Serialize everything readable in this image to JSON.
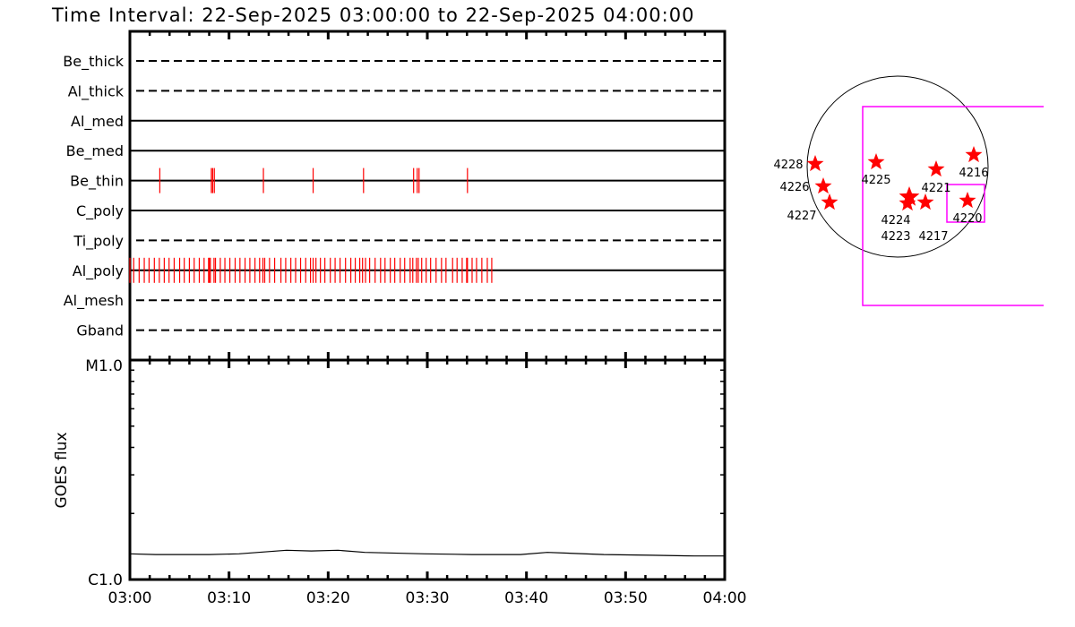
{
  "chart_data": [
    {
      "type": "timeline",
      "title": "Time Interval: 22-Sep-2025 03:00:00 to 22-Sep-2025 04:00:00",
      "xlim": [
        "03:00",
        "04:00"
      ],
      "xtick_labels": [
        "03:00",
        "03:10",
        "03:20",
        "03:30",
        "03:40",
        "03:50",
        "04:00"
      ],
      "exposure_color": "#ff0000",
      "rows": [
        {
          "name": "Be_thick",
          "line": "dashed",
          "exposures": []
        },
        {
          "name": "Al_thick",
          "line": "dashed",
          "exposures": []
        },
        {
          "name": "Al_med",
          "line": "solid",
          "exposures": []
        },
        {
          "name": "Be_med",
          "line": "solid",
          "exposures": []
        },
        {
          "name": "Be_thin",
          "line": "solid",
          "exposures": [
            "03:03:01",
            "03:08:13",
            "03:08:21",
            "03:08:31",
            "03:13:28",
            "03:18:29",
            "03:23:34",
            "03:28:37",
            "03:28:59",
            "03:29:10",
            "03:34:03"
          ]
        },
        {
          "name": "C_poly",
          "line": "solid",
          "exposures": []
        },
        {
          "name": "Ti_poly",
          "line": "dashed",
          "exposures": []
        },
        {
          "name": "Al_poly",
          "line": "solid",
          "exposures": [
            "03:00:00",
            "03:00:23",
            "03:00:56",
            "03:01:27",
            "03:01:56",
            "03:02:28",
            "03:02:58",
            "03:03:28",
            "03:03:57",
            "03:04:28",
            "03:05:01",
            "03:05:29",
            "03:06:00",
            "03:06:29",
            "03:07:00",
            "03:07:29",
            "03:07:56",
            "03:08:01",
            "03:08:07",
            "03:08:29",
            "03:08:38",
            "03:09:07",
            "03:09:35",
            "03:10:05",
            "03:10:37",
            "03:11:06",
            "03:11:37",
            "03:12:06",
            "03:12:37",
            "03:13:05",
            "03:13:25",
            "03:13:36",
            "03:14:05",
            "03:14:36",
            "03:15:14",
            "03:15:43",
            "03:16:14",
            "03:16:43",
            "03:17:13",
            "03:17:44",
            "03:18:13",
            "03:18:29",
            "03:18:46",
            "03:19:13",
            "03:19:40",
            "03:20:13",
            "03:20:42",
            "03:21:12",
            "03:21:45",
            "03:22:17",
            "03:22:44",
            "03:23:11",
            "03:23:28",
            "03:23:46",
            "03:24:11",
            "03:24:44",
            "03:25:17",
            "03:25:44",
            "03:26:16",
            "03:26:43",
            "03:27:16",
            "03:27:43",
            "03:28:16",
            "03:28:32",
            "03:28:54",
            "03:29:05",
            "03:29:26",
            "03:29:53",
            "03:30:20",
            "03:30:53",
            "03:31:26",
            "03:31:53",
            "03:32:33",
            "03:33:00",
            "03:33:31",
            "03:33:58",
            "03:34:03",
            "03:34:31",
            "03:34:58",
            "03:35:30",
            "03:36:03",
            "03:36:30"
          ]
        },
        {
          "name": "Al_mesh",
          "line": "dashed",
          "exposures": []
        },
        {
          "name": "Gband",
          "line": "dashed",
          "exposures": []
        }
      ]
    },
    {
      "type": "line",
      "ylabel": "GOES flux",
      "yscale": "log",
      "ylim": [
        1e-06,
        1e-05
      ],
      "ytick_labels": [
        "C1.0",
        "M1.0"
      ],
      "xlim": [
        "03:00",
        "04:00"
      ],
      "xtick_labels": [
        "03:00",
        "03:10",
        "03:20",
        "03:30",
        "03:40",
        "03:50",
        "04:00"
      ],
      "x": [
        "03:00:00",
        "03:02:36",
        "03:05:36",
        "03:08:00",
        "03:11:00",
        "03:15:48",
        "03:18:18",
        "03:21:00",
        "03:23:42",
        "03:29:42",
        "03:34:30",
        "03:39:24",
        "03:42:06",
        "03:47:48",
        "03:52:36",
        "03:56:54",
        "04:00:00"
      ],
      "values": [
        1.31e-06,
        1.3e-06,
        1.3e-06,
        1.3e-06,
        1.31e-06,
        1.36e-06,
        1.35e-06,
        1.36e-06,
        1.33e-06,
        1.31e-06,
        1.3e-06,
        1.3e-06,
        1.33e-06,
        1.3e-06,
        1.29e-06,
        1.28e-06,
        1.28e-06
      ]
    },
    {
      "type": "scatter",
      "marker": "star",
      "marker_color": "#ff0000",
      "fov_color": "#ff00ff",
      "labels": [
        "4228",
        "4226",
        "4227",
        "4225",
        "4221",
        "4216",
        "4220",
        "4224",
        "4223",
        "4217"
      ]
    }
  ]
}
